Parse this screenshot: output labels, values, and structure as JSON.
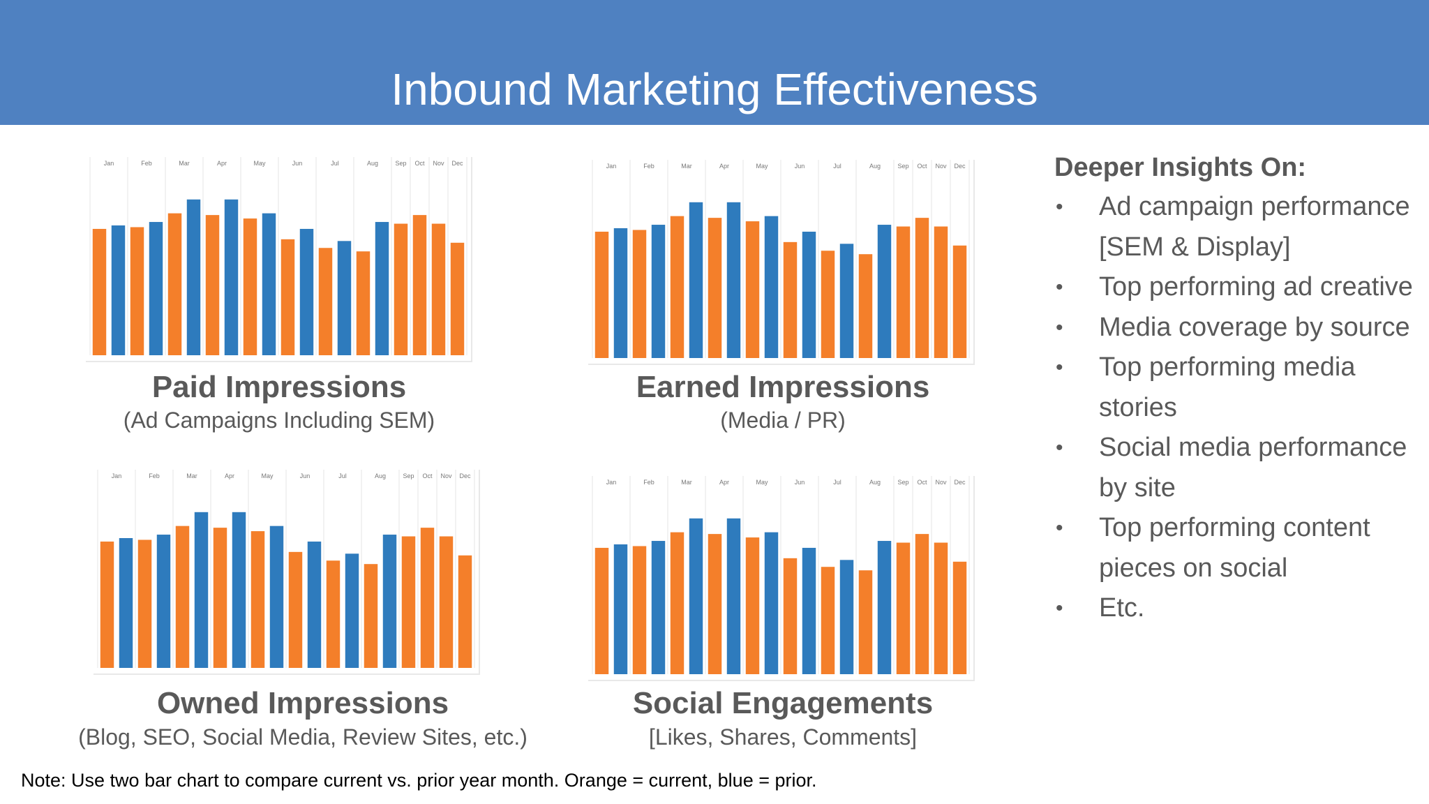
{
  "header": {
    "title": "Inbound Marketing Effectiveness"
  },
  "colors": {
    "current": "#f47f2a",
    "prior": "#2e7bbd",
    "header_bg": "#4f81c1"
  },
  "month_labels": [
    "Jan",
    "Feb",
    "Mar",
    "Apr",
    "May",
    "Jun",
    "Jul",
    "Aug",
    "Sep",
    "Oct",
    "Nov",
    "Dec"
  ],
  "panels": [
    {
      "title": "Paid Impressions",
      "subtitle": "(Ad Campaigns Including SEM)"
    },
    {
      "title": "Earned Impressions",
      "subtitle": "(Media / PR)"
    },
    {
      "title": "Owned Impressions",
      "subtitle": "(Blog, SEO, Social Media, Review Sites, etc.)"
    },
    {
      "title": "Social Engagements",
      "subtitle": "[Likes, Shares, Comments]"
    }
  ],
  "chart_data": [
    {
      "type": "bar",
      "categories": [
        "Jan",
        "Feb",
        "Mar",
        "Apr",
        "May",
        "Jun",
        "Jul",
        "Aug",
        "Sep",
        "Oct",
        "Nov",
        "Dec"
      ],
      "series": [
        {
          "name": "Orange = current",
          "values": [
            73,
            74,
            82,
            81,
            79,
            67,
            62,
            60,
            76,
            81,
            76,
            65
          ]
        },
        {
          "name": "blue = prior",
          "values": [
            75,
            77,
            90,
            90,
            82,
            73,
            66,
            77,
            0,
            0,
            0,
            0
          ]
        }
      ],
      "ylim": [
        0,
        100
      ]
    },
    {
      "type": "bar",
      "categories": [
        "Jan",
        "Feb",
        "Mar",
        "Apr",
        "May",
        "Jun",
        "Jul",
        "Aug",
        "Sep",
        "Oct",
        "Nov",
        "Dec"
      ],
      "series": [
        {
          "name": "Orange = current",
          "values": [
            73,
            74,
            82,
            81,
            79,
            67,
            62,
            60,
            76,
            81,
            76,
            65
          ]
        },
        {
          "name": "blue = prior",
          "values": [
            75,
            77,
            90,
            90,
            82,
            73,
            66,
            77,
            0,
            0,
            0,
            0
          ]
        }
      ],
      "ylim": [
        0,
        100
      ]
    },
    {
      "type": "bar",
      "categories": [
        "Jan",
        "Feb",
        "Mar",
        "Apr",
        "May",
        "Jun",
        "Jul",
        "Aug",
        "Sep",
        "Oct",
        "Nov",
        "Dec"
      ],
      "series": [
        {
          "name": "Orange = current",
          "values": [
            73,
            74,
            82,
            81,
            79,
            67,
            62,
            60,
            76,
            81,
            76,
            65
          ]
        },
        {
          "name": "blue = prior",
          "values": [
            75,
            77,
            90,
            90,
            82,
            73,
            66,
            77,
            0,
            0,
            0,
            0
          ]
        }
      ],
      "ylim": [
        0,
        100
      ]
    },
    {
      "type": "bar",
      "categories": [
        "Jan",
        "Feb",
        "Mar",
        "Apr",
        "May",
        "Jun",
        "Jul",
        "Aug",
        "Sep",
        "Oct",
        "Nov",
        "Dec"
      ],
      "series": [
        {
          "name": "Orange = current",
          "values": [
            73,
            74,
            82,
            81,
            79,
            67,
            62,
            60,
            76,
            81,
            76,
            65
          ]
        },
        {
          "name": "blue = prior",
          "values": [
            75,
            77,
            90,
            90,
            82,
            73,
            66,
            77,
            0,
            0,
            0,
            0
          ]
        }
      ],
      "ylim": [
        0,
        100
      ]
    }
  ],
  "insights": {
    "heading": "Deeper Insights On:",
    "bullet": "•",
    "items": [
      "Ad campaign performance [SEM & Display]",
      "Top performing ad creative",
      "Media coverage by source",
      "Top performing media stories",
      "Social media performance by site",
      "Top performing content pieces on social",
      "Etc."
    ]
  },
  "note": "Note:  Use two bar chart to compare current vs. prior year month. Orange = current, blue = prior."
}
